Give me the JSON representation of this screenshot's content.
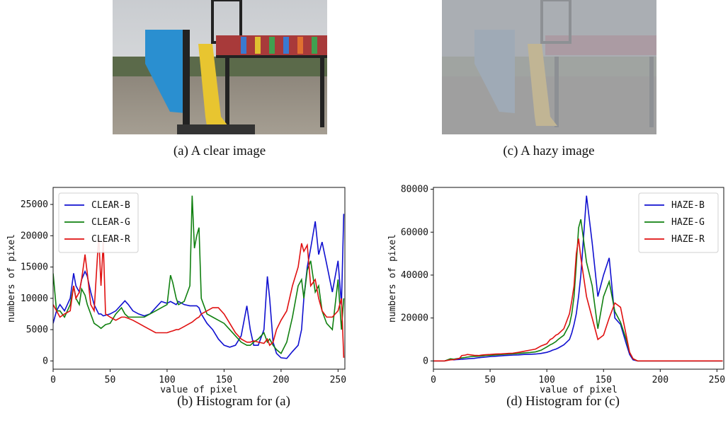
{
  "images": [
    {
      "caption": "(a) A clear image"
    },
    {
      "caption": "(c) A hazy image"
    }
  ],
  "chart_data": [
    {
      "type": "line",
      "caption": "(b) Histogram for (a)",
      "xlabel": "value of pixel",
      "ylabel": "numbers of pixel",
      "xlim": [
        0,
        256
      ],
      "ylim": [
        -1320,
        27720
      ],
      "xticks": [
        0,
        50,
        100,
        150,
        200,
        250
      ],
      "yticks": [
        0,
        5000,
        10000,
        15000,
        20000,
        25000
      ],
      "legend": "upper left",
      "x": [
        0,
        3,
        6,
        10,
        15,
        18,
        20,
        23,
        25,
        28,
        30,
        33,
        36,
        40,
        42,
        44,
        46,
        50,
        55,
        60,
        63,
        66,
        70,
        75,
        80,
        85,
        90,
        95,
        100,
        103,
        105,
        108,
        110,
        115,
        120,
        122,
        124,
        126,
        128,
        130,
        135,
        140,
        145,
        150,
        155,
        160,
        165,
        170,
        173,
        176,
        180,
        185,
        188,
        190,
        193,
        196,
        200,
        205,
        210,
        215,
        218,
        220,
        223,
        226,
        230,
        233,
        236,
        240,
        245,
        250,
        253,
        255
      ],
      "series": [
        {
          "name": "CLEAR-B",
          "color": "#1010d0",
          "values": [
            6000,
            8000,
            9000,
            8000,
            10000,
            14000,
            12000,
            11000,
            13000,
            14300,
            13500,
            11000,
            9000,
            7500,
            7500,
            7200,
            7300,
            7500,
            8000,
            9000,
            9600,
            9000,
            8000,
            7500,
            7200,
            7500,
            8500,
            9500,
            9200,
            9500,
            9300,
            9000,
            9500,
            9000,
            8800,
            8800,
            8800,
            8800,
            8500,
            7500,
            6000,
            5000,
            3500,
            2500,
            2200,
            2500,
            4000,
            8800,
            5000,
            2500,
            2500,
            5000,
            13500,
            10000,
            3000,
            1200,
            500,
            400,
            1500,
            2500,
            5000,
            10000,
            15000,
            18000,
            22300,
            17000,
            19000,
            15500,
            11000,
            16000,
            9000,
            23500
          ]
        },
        {
          "name": "CLEAR-G",
          "color": "#108010",
          "values": [
            14000,
            8000,
            8000,
            7000,
            9000,
            12000,
            10000,
            9000,
            11500,
            10500,
            9000,
            7500,
            6000,
            5500,
            5200,
            5500,
            5800,
            6000,
            7500,
            8500,
            7500,
            7000,
            7000,
            7000,
            7000,
            7500,
            8000,
            8500,
            9000,
            13700,
            12500,
            10000,
            9000,
            9500,
            12000,
            26400,
            18000,
            20000,
            21300,
            10000,
            7500,
            7000,
            6500,
            6000,
            5000,
            4000,
            3000,
            2500,
            2500,
            3000,
            3500,
            4500,
            3000,
            3500,
            2500,
            1800,
            1200,
            3000,
            7000,
            12000,
            13000,
            10000,
            14500,
            16000,
            11000,
            12000,
            8000,
            6000,
            5000,
            13000,
            5000,
            10000
          ]
        },
        {
          "name": "CLEAR-R",
          "color": "#e01010",
          "values": [
            9000,
            8000,
            7000,
            7500,
            8000,
            12000,
            10000,
            11000,
            13000,
            17000,
            14000,
            9000,
            8000,
            20000,
            12000,
            19000,
            7500,
            7000,
            6500,
            7000,
            7000,
            6800,
            6500,
            6000,
            5500,
            5000,
            4500,
            4500,
            4500,
            4700,
            4800,
            5000,
            5000,
            5500,
            6000,
            6200,
            6500,
            6800,
            7000,
            7500,
            8000,
            8500,
            8500,
            7500,
            6000,
            4500,
            3500,
            3000,
            3000,
            3200,
            3000,
            2800,
            3500,
            2500,
            3000,
            5000,
            6500,
            8000,
            12000,
            15000,
            18800,
            17500,
            18500,
            12000,
            13000,
            10000,
            8000,
            7000,
            7000,
            8000,
            10000,
            500
          ]
        }
      ]
    },
    {
      "type": "line",
      "caption": "(d) Histogram for (c)",
      "xlabel": "value of pixel",
      "ylabel": "numbers of pixel",
      "xlim": [
        0,
        256
      ],
      "ylim": [
        -3850,
        80850
      ],
      "xticks": [
        0,
        50,
        100,
        150,
        200,
        250
      ],
      "yticks": [
        0,
        20000,
        40000,
        60000,
        80000
      ],
      "legend": "upper right",
      "x": [
        0,
        3,
        6,
        10,
        15,
        18,
        20,
        23,
        25,
        28,
        30,
        33,
        36,
        40,
        42,
        44,
        46,
        50,
        55,
        60,
        63,
        66,
        70,
        75,
        80,
        85,
        90,
        95,
        100,
        103,
        105,
        108,
        110,
        115,
        120,
        122,
        124,
        126,
        128,
        130,
        135,
        140,
        145,
        150,
        155,
        160,
        165,
        170,
        173,
        176,
        180,
        185,
        188,
        190,
        193,
        196,
        200,
        205,
        210,
        215,
        218,
        220,
        223,
        226,
        230,
        233,
        236,
        240,
        245,
        250,
        253,
        255
      ],
      "series": [
        {
          "name": "HAZE-B",
          "color": "#1010d0",
          "values": [
            0,
            0,
            0,
            0,
            800,
            500,
            600,
            700,
            800,
            900,
            1000,
            1100,
            1200,
            1500,
            1600,
            1700,
            1800,
            2000,
            2200,
            2400,
            2500,
            2600,
            2700,
            2800,
            3000,
            3100,
            3200,
            3500,
            4000,
            4500,
            5000,
            5500,
            6000,
            7500,
            10000,
            13000,
            17000,
            22000,
            30000,
            40000,
            77000,
            55000,
            30000,
            40000,
            48000,
            20000,
            17000,
            8000,
            3000,
            500,
            0,
            0,
            0,
            0,
            0,
            0,
            0,
            0,
            0,
            0,
            0,
            0,
            0,
            0,
            0,
            0,
            0,
            0,
            0,
            0,
            0,
            0
          ]
        },
        {
          "name": "HAZE-G",
          "color": "#108010",
          "values": [
            0,
            0,
            0,
            0,
            1000,
            800,
            1000,
            1200,
            1400,
            1600,
            1800,
            2000,
            2100,
            2200,
            2300,
            2400,
            2500,
            2600,
            2800,
            3000,
            3100,
            3200,
            3300,
            3500,
            3700,
            3900,
            4200,
            5000,
            6500,
            7500,
            8000,
            9000,
            10000,
            12000,
            17000,
            22000,
            30000,
            45000,
            62000,
            66000,
            46000,
            35000,
            15000,
            30000,
            37000,
            23000,
            18000,
            10000,
            4000,
            1000,
            0,
            0,
            0,
            0,
            0,
            0,
            0,
            0,
            0,
            0,
            0,
            0,
            0,
            0,
            0,
            0,
            0,
            0,
            0,
            0,
            0,
            0
          ]
        },
        {
          "name": "HAZE-R",
          "color": "#e01010",
          "values": [
            0,
            0,
            0,
            0,
            500,
            600,
            800,
            1200,
            2500,
            2700,
            3000,
            2800,
            2600,
            2500,
            2700,
            2800,
            2900,
            3000,
            3200,
            3300,
            3400,
            3500,
            3600,
            4000,
            4500,
            5000,
            5500,
            7000,
            8000,
            10000,
            10500,
            12000,
            12500,
            15000,
            22000,
            28000,
            35000,
            50000,
            57000,
            48000,
            30000,
            20000,
            10000,
            12000,
            20000,
            27000,
            25000,
            12000,
            4000,
            1000,
            0,
            0,
            0,
            0,
            0,
            0,
            0,
            0,
            0,
            0,
            0,
            0,
            0,
            0,
            0,
            0,
            0,
            0,
            0,
            0,
            0,
            0
          ]
        }
      ]
    }
  ]
}
